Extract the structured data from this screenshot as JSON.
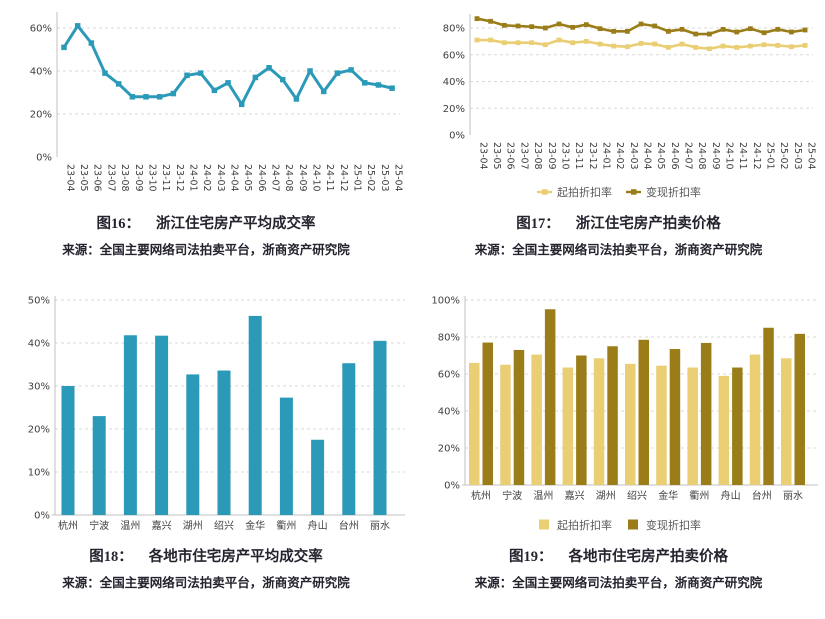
{
  "colors": {
    "teal": "#2B9AB9",
    "light_gold": "#E9CE74",
    "dark_gold": "#9A7D18",
    "axis": "#C0C0C0",
    "grid": "#D8D8D8",
    "tick": "#404040",
    "legend_text": "#595959",
    "caption": "#24242E"
  },
  "figures": [
    {
      "label": "图16：",
      "title": "浙江住宅房产平均成交率",
      "source": "来源：全国主要网络司法拍卖平台，浙商资产研究院"
    },
    {
      "label": "图17：",
      "title": "浙江住宅房产拍卖价格",
      "source": "来源：全国主要网络司法拍卖平台，浙商资产研究院"
    },
    {
      "label": "图18：",
      "title": "各地市住宅房产平均成交率",
      "source": "来源：全国主要网络司法拍卖平台，浙商资产研究院"
    },
    {
      "label": "图19：",
      "title": "各地市住宅房产拍卖价格",
      "source": "来源：全国主要网络司法拍卖平台，浙商资产研究院"
    }
  ],
  "chart_data": [
    {
      "id": "fig16",
      "type": "line",
      "title": "浙江住宅房产平均成交率",
      "categories": [
        "23-04",
        "23-05",
        "23-06",
        "23-07",
        "23-08",
        "23-09",
        "23-10",
        "23-11",
        "23-12",
        "24-01",
        "24-02",
        "24-03",
        "24-04",
        "24-05",
        "24-06",
        "24-07",
        "24-08",
        "24-09",
        "24-10",
        "24-11",
        "24-12",
        "25-01",
        "25-02",
        "25-03",
        "25-04"
      ],
      "series": [
        {
          "name": "平均成交率",
          "color_key": "teal",
          "values": [
            51,
            61,
            53,
            39,
            34,
            28,
            28,
            28,
            29.5,
            38,
            39,
            31,
            34.5,
            24.5,
            37,
            41.5,
            36,
            27,
            40,
            30.5,
            39,
            40.5,
            34.5,
            33.5,
            32
          ]
        }
      ],
      "ylim": [
        0,
        70
      ],
      "yticks": [
        0,
        20,
        40,
        60
      ],
      "grid": true,
      "legend": false
    },
    {
      "id": "fig17",
      "type": "line",
      "title": "浙江住宅房产拍卖价格",
      "categories": [
        "23-04",
        "23-05",
        "23-06",
        "23-07",
        "23-08",
        "23-09",
        "23-10",
        "23-11",
        "23-12",
        "24-01",
        "24-02",
        "24-03",
        "24-04",
        "24-05",
        "24-06",
        "24-07",
        "24-08",
        "24-09",
        "24-10",
        "24-11",
        "24-12",
        "25-01",
        "25-02",
        "25-03",
        "25-04"
      ],
      "series": [
        {
          "name": "起拍折扣率",
          "color_key": "light_gold",
          "values": [
            71,
            71,
            69,
            69,
            69,
            67.5,
            71,
            69,
            70,
            68,
            66.5,
            66,
            68.5,
            68,
            65.5,
            68,
            65.5,
            64.5,
            66.5,
            65.5,
            66.5,
            67.5,
            67,
            66,
            67
          ]
        },
        {
          "name": "变现折扣率",
          "color_key": "dark_gold",
          "values": [
            87,
            85,
            82,
            81.5,
            81,
            80,
            83,
            80.5,
            82.5,
            79.5,
            77.5,
            77.5,
            83,
            81.5,
            77.5,
            79,
            75.5,
            75.5,
            79,
            77,
            79.5,
            76.5,
            79,
            77,
            78.5
          ]
        }
      ],
      "ylim": [
        0,
        95
      ],
      "yticks": [
        0,
        20,
        40,
        60,
        80
      ],
      "grid": true,
      "legend": true,
      "legend_position": "bottom"
    },
    {
      "id": "fig18",
      "type": "bar",
      "title": "各地市住宅房产平均成交率",
      "categories": [
        "杭州",
        "宁波",
        "温州",
        "嘉兴",
        "湖州",
        "绍兴",
        "金华",
        "衢州",
        "舟山",
        "台州",
        "丽水"
      ],
      "series": [
        {
          "name": "平均成交率",
          "color_key": "teal",
          "values": [
            30,
            23,
            41.8,
            41.7,
            32.7,
            33.6,
            46.3,
            27.3,
            17.5,
            35.3,
            40.5
          ]
        }
      ],
      "ylim": [
        0,
        52
      ],
      "yticks": [
        0,
        10,
        20,
        30,
        40,
        50
      ],
      "grid": true,
      "legend": false
    },
    {
      "id": "fig19",
      "type": "bar",
      "title": "各地市住宅房产拍卖价格",
      "categories": [
        "杭州",
        "宁波",
        "温州",
        "嘉兴",
        "湖州",
        "绍兴",
        "金华",
        "衢州",
        "舟山",
        "台州",
        "丽水"
      ],
      "series": [
        {
          "name": "起拍折扣率",
          "color_key": "light_gold",
          "values": [
            66,
            65,
            70.5,
            63.5,
            68.5,
            65.5,
            64.5,
            63.5,
            59,
            70.5,
            68.5
          ]
        },
        {
          "name": "变现折扣率",
          "color_key": "dark_gold",
          "values": [
            77,
            73,
            95,
            70,
            75,
            78.5,
            73.5,
            76.8,
            63.5,
            85,
            81.7
          ]
        }
      ],
      "ylim": [
        0,
        102
      ],
      "yticks": [
        0,
        20,
        40,
        60,
        80,
        100
      ],
      "grid": true,
      "legend": true,
      "legend_position": "bottom"
    }
  ]
}
